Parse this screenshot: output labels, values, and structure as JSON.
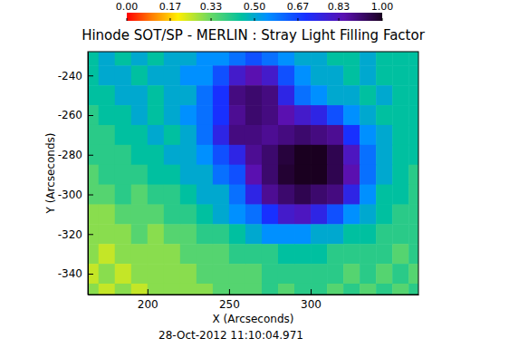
{
  "chart_data": {
    "type": "heatmap",
    "title": "Hinode SOT/SP - MERLIN : Stray Light Filling Factor",
    "xlabel": "X (Arcseconds)",
    "ylabel": "Y (Arcseconds)",
    "annotations": [
      "28-Oct-2012 11:10:04.971"
    ],
    "xlim": [
      163.5,
      366
    ],
    "ylim": [
      -350.5,
      -228
    ],
    "xticks": [
      200,
      250,
      300
    ],
    "yticks": [
      -340,
      -320,
      -300,
      -280,
      -260,
      -240
    ],
    "x": [
      165,
      175,
      185,
      195,
      205,
      215,
      225,
      235,
      245,
      255,
      265,
      275,
      285,
      295,
      305,
      315,
      325,
      335,
      345,
      355,
      365
    ],
    "y": [
      -230,
      -240,
      -250,
      -260,
      -270,
      -280,
      -290,
      -300,
      -310,
      -320,
      -330,
      -340,
      -350
    ],
    "cells": [
      [
        0.45,
        0.5,
        0.45,
        0.5,
        0.45,
        0.5,
        0.5,
        0.55,
        0.55,
        0.6,
        0.65,
        0.6,
        0.55,
        0.5,
        0.5,
        0.45,
        0.45,
        0.5,
        0.45,
        0.45,
        0.45
      ],
      [
        0.45,
        0.5,
        0.5,
        0.45,
        0.5,
        0.5,
        0.55,
        0.55,
        0.65,
        0.8,
        0.85,
        0.8,
        0.65,
        0.55,
        0.5,
        0.5,
        0.45,
        0.5,
        0.45,
        0.45,
        0.45
      ],
      [
        0.45,
        0.45,
        0.5,
        0.5,
        0.45,
        0.5,
        0.5,
        0.6,
        0.7,
        0.9,
        0.92,
        0.9,
        0.75,
        0.6,
        0.55,
        0.5,
        0.5,
        0.45,
        0.5,
        0.45,
        0.45
      ],
      [
        0.4,
        0.45,
        0.45,
        0.5,
        0.45,
        0.5,
        0.55,
        0.6,
        0.7,
        0.88,
        0.92,
        0.9,
        0.85,
        0.8,
        0.75,
        0.65,
        0.55,
        0.5,
        0.45,
        0.45,
        0.45
      ],
      [
        0.4,
        0.4,
        0.45,
        0.45,
        0.5,
        0.45,
        0.5,
        0.6,
        0.75,
        0.9,
        0.9,
        0.88,
        0.9,
        0.92,
        0.9,
        0.88,
        0.7,
        0.55,
        0.5,
        0.45,
        0.45
      ],
      [
        0.4,
        0.4,
        0.4,
        0.45,
        0.45,
        0.5,
        0.5,
        0.55,
        0.65,
        0.75,
        0.88,
        0.92,
        0.97,
        1.0,
        1.0,
        0.95,
        0.82,
        0.6,
        0.5,
        0.45,
        0.45
      ],
      [
        0.35,
        0.4,
        0.4,
        0.4,
        0.45,
        0.45,
        0.5,
        0.5,
        0.6,
        0.65,
        0.85,
        0.92,
        0.98,
        1.0,
        1.0,
        0.95,
        0.85,
        0.6,
        0.5,
        0.45,
        0.4
      ],
      [
        0.35,
        0.35,
        0.4,
        0.35,
        0.4,
        0.4,
        0.45,
        0.5,
        0.5,
        0.6,
        0.75,
        0.88,
        0.92,
        0.95,
        0.92,
        0.9,
        0.75,
        0.55,
        0.45,
        0.45,
        0.4
      ],
      [
        0.3,
        0.3,
        0.35,
        0.35,
        0.35,
        0.4,
        0.4,
        0.45,
        0.5,
        0.55,
        0.6,
        0.7,
        0.8,
        0.82,
        0.75,
        0.65,
        0.55,
        0.5,
        0.45,
        0.4,
        0.4
      ],
      [
        0.3,
        0.3,
        0.3,
        0.35,
        0.3,
        0.35,
        0.35,
        0.4,
        0.4,
        0.45,
        0.5,
        0.55,
        0.55,
        0.55,
        0.5,
        0.5,
        0.45,
        0.45,
        0.4,
        0.4,
        0.4
      ],
      [
        0.3,
        0.25,
        0.3,
        0.3,
        0.3,
        0.3,
        0.35,
        0.35,
        0.35,
        0.4,
        0.4,
        0.4,
        0.45,
        0.45,
        0.45,
        0.4,
        0.4,
        0.4,
        0.4,
        0.35,
        0.4
      ],
      [
        0.25,
        0.3,
        0.25,
        0.3,
        0.3,
        0.3,
        0.3,
        0.35,
        0.35,
        0.35,
        0.35,
        0.4,
        0.4,
        0.4,
        0.4,
        0.4,
        0.35,
        0.4,
        0.35,
        0.4,
        0.35
      ],
      [
        0.3,
        0.25,
        0.3,
        0.25,
        0.3,
        0.3,
        0.3,
        0.3,
        0.35,
        0.35,
        0.35,
        0.4,
        0.35,
        0.4,
        0.4,
        0.35,
        0.4,
        0.35,
        0.4,
        0.35,
        0.4
      ]
    ],
    "colorbar_range": [
      0,
      1
    ],
    "colorbar_ticks": [
      {
        "value": 0,
        "label": "0.00"
      },
      0.17,
      0.33,
      {
        "value": 0.5,
        "label": "0.50"
      },
      0.67,
      0.83,
      {
        "value": 1,
        "label": "1.00"
      }
    ]
  }
}
